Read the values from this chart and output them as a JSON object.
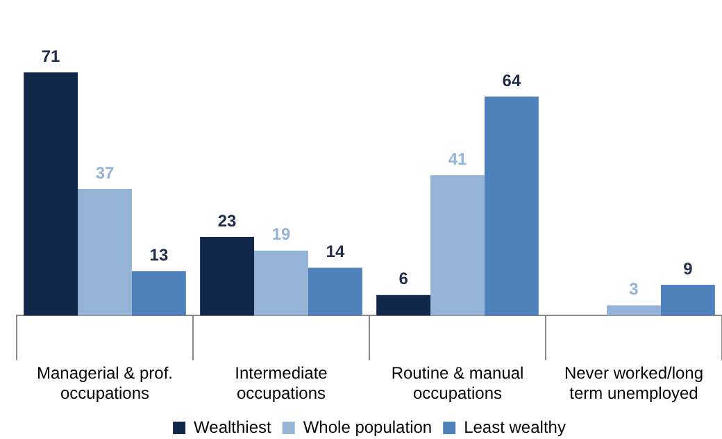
{
  "chart_data": {
    "type": "bar",
    "categories": [
      "Managerial & prof. occupations",
      "Intermediate occupations",
      "Routine & manual occupations",
      "Never worked/long term unemployed"
    ],
    "series": [
      {
        "name": "Wealthiest",
        "color": "#12284a",
        "values": [
          71,
          23,
          6,
          null
        ]
      },
      {
        "name": "Whole population",
        "color": "#95b3d7",
        "values": [
          37,
          19,
          41,
          3
        ]
      },
      {
        "name": "Least wealthy",
        "color": "#4f81bd",
        "values": [
          13,
          14,
          64,
          9
        ]
      }
    ],
    "data_labels": true,
    "legend": "bottom",
    "grid": false
  }
}
